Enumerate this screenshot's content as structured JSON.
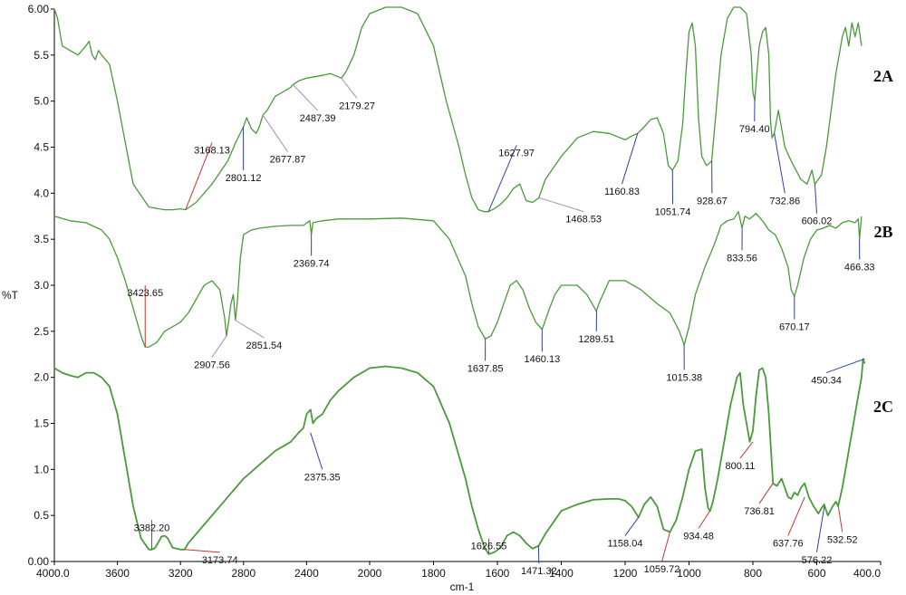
{
  "chart_data": {
    "type": "line",
    "xlabel": "cm-1",
    "ylabel": "%T",
    "xlim": [
      4000.0,
      400.0
    ],
    "ylim": [
      0.0,
      6.0
    ],
    "grid": false,
    "x_ticks": [
      "4000.0",
      "3600",
      "3200",
      "2800",
      "2400",
      "2000",
      "1800",
      "1600",
      "1400",
      "1200",
      "1000",
      "800",
      "600",
      "400.0"
    ],
    "y_ticks": [
      "0.00",
      "0.5",
      "1.0",
      "1.5",
      "2.0",
      "2.5",
      "3.0",
      "3.5",
      "4.0",
      "4.5",
      "5.0",
      "5.5",
      "6.00"
    ],
    "colors": {
      "spectrum": "#4a9a3c",
      "axis": "#000000",
      "label_blue": "#2f3fa8",
      "label_red": "#c0392b",
      "label_purple": "#9b8ec4"
    },
    "series": [
      {
        "name": "2A",
        "x": [
          4000,
          3980,
          3950,
          3900,
          3850,
          3800,
          3780,
          3760,
          3740,
          3720,
          3700,
          3650,
          3600,
          3500,
          3400,
          3300,
          3250,
          3200,
          3168,
          3100,
          3000,
          2900,
          2850,
          2801,
          2780,
          2750,
          2720,
          2700,
          2677,
          2650,
          2600,
          2550,
          2500,
          2487,
          2450,
          2400,
          2300,
          2250,
          2179,
          2150,
          2100,
          2050,
          2000,
          1950,
          1900,
          1850,
          1800,
          1760,
          1720,
          1700,
          1680,
          1660,
          1640,
          1628,
          1610,
          1590,
          1570,
          1550,
          1530,
          1510,
          1490,
          1470,
          1450,
          1400,
          1350,
          1300,
          1250,
          1200,
          1180,
          1161,
          1140,
          1120,
          1100,
          1080,
          1065,
          1052,
          1035,
          1020,
          1010,
          1000,
          990,
          980,
          970,
          960,
          945,
          929,
          915,
          900,
          880,
          860,
          840,
          820,
          805,
          800,
          794,
          790,
          780,
          770,
          760,
          750,
          745,
          740,
          733,
          720,
          700,
          680,
          650,
          630,
          615,
          606,
          595,
          585,
          570,
          555,
          540,
          520,
          510,
          500,
          490,
          480,
          470,
          460
        ],
        "y": [
          6.0,
          5.9,
          5.6,
          5.55,
          5.5,
          5.6,
          5.65,
          5.5,
          5.45,
          5.55,
          5.5,
          5.4,
          5.0,
          4.1,
          3.85,
          3.82,
          3.82,
          3.83,
          3.82,
          3.9,
          4.1,
          4.35,
          4.55,
          4.72,
          4.82,
          4.7,
          4.65,
          4.72,
          4.85,
          4.9,
          5.05,
          5.1,
          5.15,
          5.18,
          5.22,
          5.25,
          5.28,
          5.3,
          5.25,
          5.32,
          5.5,
          5.8,
          5.95,
          6.02,
          6.02,
          5.95,
          5.6,
          5.0,
          4.5,
          4.2,
          3.95,
          3.82,
          3.8,
          3.8,
          3.83,
          3.88,
          3.95,
          4.05,
          4.1,
          3.92,
          3.9,
          3.95,
          4.15,
          4.4,
          4.6,
          4.67,
          4.65,
          4.58,
          4.62,
          4.65,
          4.72,
          4.8,
          4.82,
          4.65,
          4.3,
          4.25,
          4.35,
          4.75,
          5.3,
          5.75,
          5.85,
          5.6,
          4.8,
          4.4,
          4.3,
          4.35,
          4.9,
          5.5,
          5.9,
          6.02,
          6.02,
          5.95,
          5.5,
          5.1,
          5.0,
          5.2,
          5.6,
          5.75,
          5.8,
          5.5,
          4.8,
          4.6,
          4.65,
          4.9,
          4.5,
          4.35,
          4.15,
          4.1,
          4.25,
          4.1,
          4.15,
          4.2,
          4.5,
          4.9,
          5.3,
          5.7,
          5.8,
          5.6,
          5.85,
          5.7,
          5.85,
          5.6
        ],
        "peaks": [
          {
            "label": "3168.13",
            "x": 3168.13,
            "y": 3.82,
            "color": "label_red",
            "lx": 3000,
            "ly": 4.55
          },
          {
            "label": "2801.12",
            "x": 2801.12,
            "y": 4.72,
            "color": "label_blue",
            "lx": 2801,
            "ly": 4.25
          },
          {
            "label": "2677.87",
            "x": 2677.87,
            "y": 4.85,
            "color": "label_purple",
            "lx": 2520,
            "ly": 4.45
          },
          {
            "label": "2487.39",
            "x": 2487.39,
            "y": 5.18,
            "color": "label_purple",
            "lx": 2330,
            "ly": 4.9
          },
          {
            "label": "2179.27",
            "x": 2179.27,
            "y": 5.25,
            "color": "label_purple",
            "lx": 2080,
            "ly": 5.03
          },
          {
            "label": "1627.97",
            "x": 1627.97,
            "y": 3.8,
            "color": "label_blue",
            "lx": 1540,
            "ly": 4.52
          },
          {
            "label": "1468.53",
            "x": 1468.53,
            "y": 3.95,
            "color": "label_purple",
            "lx": 1330,
            "ly": 3.8
          },
          {
            "label": "1160.83",
            "x": 1160.83,
            "y": 4.65,
            "color": "label_blue",
            "lx": 1210,
            "ly": 4.1
          },
          {
            "label": "1051.74",
            "x": 1051.74,
            "y": 4.25,
            "color": "label_blue",
            "lx": 1051,
            "ly": 3.88
          },
          {
            "label": "928.67",
            "x": 928.67,
            "y": 4.35,
            "color": "label_blue",
            "lx": 928,
            "ly": 4.0
          },
          {
            "label": "794.40",
            "x": 794.4,
            "y": 5.0,
            "color": "label_blue",
            "lx": 795,
            "ly": 4.78
          },
          {
            "label": "732.86",
            "x": 732.86,
            "y": 4.65,
            "color": "label_blue",
            "lx": 700,
            "ly": 4.0
          },
          {
            "label": "606.02",
            "x": 606.02,
            "y": 4.1,
            "color": "label_blue",
            "lx": 600,
            "ly": 3.78
          }
        ]
      },
      {
        "name": "2B",
        "x": [
          4000,
          3900,
          3800,
          3700,
          3650,
          3600,
          3550,
          3500,
          3450,
          3424,
          3400,
          3350,
          3300,
          3250,
          3200,
          3150,
          3100,
          3050,
          3000,
          2950,
          2920,
          2908,
          2895,
          2880,
          2865,
          2852,
          2840,
          2820,
          2800,
          2750,
          2700,
          2600,
          2500,
          2420,
          2380,
          2370,
          2360,
          2300,
          2200,
          2100,
          2000,
          1900,
          1800,
          1750,
          1700,
          1680,
          1660,
          1638,
          1620,
          1600,
          1580,
          1560,
          1540,
          1520,
          1500,
          1480,
          1460,
          1440,
          1420,
          1400,
          1350,
          1320,
          1300,
          1290,
          1280,
          1250,
          1200,
          1150,
          1100,
          1060,
          1030,
          1015,
          1000,
          980,
          950,
          920,
          900,
          880,
          860,
          845,
          834,
          825,
          810,
          790,
          770,
          750,
          730,
          710,
          690,
          680,
          670,
          660,
          640,
          620,
          600,
          580,
          560,
          540,
          520,
          500,
          480,
          470,
          466,
          460
        ],
        "y": [
          3.75,
          3.7,
          3.68,
          3.6,
          3.5,
          3.3,
          3.05,
          2.75,
          2.45,
          2.33,
          2.33,
          2.38,
          2.5,
          2.55,
          2.6,
          2.7,
          2.85,
          3.0,
          3.05,
          2.95,
          2.65,
          2.45,
          2.6,
          2.8,
          2.9,
          2.62,
          2.8,
          3.3,
          3.55,
          3.6,
          3.62,
          3.64,
          3.65,
          3.65,
          3.7,
          3.55,
          3.68,
          3.7,
          3.72,
          3.72,
          3.72,
          3.73,
          3.7,
          3.5,
          3.1,
          2.8,
          2.55,
          2.42,
          2.45,
          2.6,
          2.8,
          3.0,
          3.05,
          2.95,
          2.75,
          2.6,
          2.52,
          2.72,
          2.9,
          3.0,
          3.0,
          2.9,
          2.78,
          2.72,
          2.82,
          3.05,
          3.05,
          2.95,
          2.8,
          2.7,
          2.5,
          2.35,
          2.55,
          2.9,
          3.2,
          3.45,
          3.65,
          3.7,
          3.72,
          3.8,
          3.62,
          3.75,
          3.72,
          3.78,
          3.7,
          3.6,
          3.55,
          3.4,
          3.2,
          2.95,
          2.88,
          3.0,
          3.3,
          3.5,
          3.6,
          3.62,
          3.65,
          3.62,
          3.68,
          3.7,
          3.68,
          3.72,
          3.5,
          3.75
        ],
        "peaks": [
          {
            "label": "3423.65",
            "x": 3423.65,
            "y": 2.33,
            "color": "label_red",
            "lx": 3424,
            "ly": 3.0
          },
          {
            "label": "2907.56",
            "x": 2907.56,
            "y": 2.45,
            "color": "label_purple",
            "lx": 3000,
            "ly": 2.22
          },
          {
            "label": "2851.54",
            "x": 2851.54,
            "y": 2.62,
            "color": "label_purple",
            "lx": 2670,
            "ly": 2.43
          },
          {
            "label": "2369.74",
            "x": 2369.74,
            "y": 3.55,
            "color": "label_blue",
            "lx": 2370,
            "ly": 3.32
          },
          {
            "label": "1637.85",
            "x": 1637.85,
            "y": 2.42,
            "color": "label_blue",
            "lx": 1638,
            "ly": 2.18
          },
          {
            "label": "1460.13",
            "x": 1460.13,
            "y": 2.52,
            "color": "label_blue",
            "lx": 1460,
            "ly": 2.28
          },
          {
            "label": "1289.51",
            "x": 1289.51,
            "y": 2.72,
            "color": "label_blue",
            "lx": 1290,
            "ly": 2.5
          },
          {
            "label": "1015.38",
            "x": 1015.38,
            "y": 2.35,
            "color": "label_blue",
            "lx": 1015,
            "ly": 2.08
          },
          {
            "label": "833.56",
            "x": 833.56,
            "y": 3.62,
            "color": "label_blue",
            "lx": 834,
            "ly": 3.38
          },
          {
            "label": "670.17",
            "x": 670.17,
            "y": 2.88,
            "color": "label_blue",
            "lx": 670,
            "ly": 2.63
          },
          {
            "label": "466.33",
            "x": 466.33,
            "y": 3.5,
            "color": "label_blue",
            "lx": 466,
            "ly": 3.28
          }
        ]
      },
      {
        "name": "2C",
        "x": [
          4000,
          3950,
          3900,
          3850,
          3800,
          3750,
          3700,
          3650,
          3600,
          3550,
          3500,
          3450,
          3400,
          3382,
          3360,
          3320,
          3300,
          3280,
          3250,
          3200,
          3174,
          3150,
          3100,
          3000,
          2900,
          2800,
          2700,
          2600,
          2500,
          2450,
          2420,
          2400,
          2390,
          2375,
          2360,
          2340,
          2300,
          2250,
          2200,
          2100,
          2000,
          1950,
          1900,
          1850,
          1800,
          1750,
          1700,
          1680,
          1660,
          1640,
          1627,
          1610,
          1590,
          1570,
          1550,
          1530,
          1510,
          1490,
          1471,
          1450,
          1420,
          1400,
          1350,
          1300,
          1250,
          1220,
          1200,
          1180,
          1158,
          1140,
          1120,
          1100,
          1080,
          1060,
          1040,
          1020,
          1000,
          980,
          960,
          950,
          940,
          934,
          925,
          910,
          890,
          870,
          850,
          840,
          830,
          820,
          810,
          800,
          790,
          780,
          770,
          760,
          750,
          737,
          725,
          710,
          700,
          690,
          680,
          670,
          660,
          650,
          638,
          625,
          610,
          595,
          585,
          577,
          565,
          550,
          540,
          533,
          520,
          505,
          490,
          480,
          470,
          460,
          455,
          450
        ],
        "y": [
          2.1,
          2.05,
          2.02,
          2.0,
          2.05,
          2.05,
          2.0,
          1.9,
          1.6,
          1.1,
          0.6,
          0.25,
          0.13,
          0.13,
          0.15,
          0.27,
          0.28,
          0.25,
          0.15,
          0.13,
          0.13,
          0.2,
          0.3,
          0.5,
          0.7,
          0.9,
          1.05,
          1.2,
          1.3,
          1.4,
          1.45,
          1.6,
          1.62,
          1.65,
          1.5,
          1.55,
          1.6,
          1.75,
          1.85,
          2.0,
          2.1,
          2.12,
          2.1,
          2.05,
          1.9,
          1.5,
          0.9,
          0.6,
          0.35,
          0.15,
          0.08,
          0.1,
          0.15,
          0.28,
          0.32,
          0.28,
          0.2,
          0.14,
          0.17,
          0.3,
          0.45,
          0.55,
          0.62,
          0.67,
          0.68,
          0.68,
          0.66,
          0.6,
          0.48,
          0.62,
          0.7,
          0.6,
          0.35,
          0.32,
          0.45,
          0.7,
          1.0,
          1.2,
          1.22,
          0.8,
          0.58,
          0.55,
          0.65,
          0.9,
          1.3,
          1.7,
          2.0,
          2.05,
          1.7,
          1.5,
          1.3,
          1.42,
          1.8,
          2.08,
          2.1,
          2.0,
          1.6,
          0.85,
          0.82,
          0.9,
          0.8,
          0.7,
          0.68,
          0.75,
          0.72,
          0.8,
          0.85,
          0.7,
          0.6,
          0.52,
          0.58,
          0.62,
          0.5,
          0.6,
          0.65,
          0.6,
          0.8,
          1.1,
          1.4,
          1.6,
          1.8,
          2.0,
          2.2,
          2.15
        ],
        "peaks": [
          {
            "label": "3382.20",
            "x": 3382.2,
            "y": 0.13,
            "color": "label_red",
            "lx": 3382,
            "ly": 0.45
          },
          {
            "label": "3173.74",
            "x": 3173.74,
            "y": 0.13,
            "color": "label_red",
            "lx": 2950,
            "ly": 0.1
          },
          {
            "label": "2375.35",
            "x": 2375.35,
            "y": 1.4,
            "color": "label_blue",
            "lx": 2300,
            "ly": 1.0
          },
          {
            "label": "1626.55",
            "x": 1626.55,
            "y": 0.08,
            "color": "label_red",
            "lx": 1627,
            "ly": 0.25
          },
          {
            "label": "1471.32",
            "x": 1471.32,
            "y": 0.17,
            "color": "label_blue",
            "lx": 1470,
            "ly": -0.02
          },
          {
            "label": "1158.04",
            "x": 1158.04,
            "y": 0.48,
            "color": "label_blue",
            "lx": 1200,
            "ly": 0.28
          },
          {
            "label": "1059.72",
            "x": 1059.72,
            "y": 0.32,
            "color": "label_red",
            "lx": 1085,
            "ly": 0.0
          },
          {
            "label": "934.48",
            "x": 934.48,
            "y": 0.55,
            "color": "label_red",
            "lx": 970,
            "ly": 0.36
          },
          {
            "label": "800.11",
            "x": 800.11,
            "y": 1.3,
            "color": "label_red",
            "lx": 840,
            "ly": 1.12
          },
          {
            "label": "736.81",
            "x": 736.81,
            "y": 0.85,
            "color": "label_red",
            "lx": 780,
            "ly": 0.63
          },
          {
            "label": "637.76",
            "x": 637.76,
            "y": 0.7,
            "color": "label_red",
            "lx": 690,
            "ly": 0.28
          },
          {
            "label": "576.22",
            "x": 576.22,
            "y": 0.6,
            "color": "label_blue",
            "lx": 600,
            "ly": 0.1
          },
          {
            "label": "532.52",
            "x": 532.52,
            "y": 0.6,
            "color": "label_red",
            "lx": 520,
            "ly": 0.32
          },
          {
            "label": "450.34",
            "x": 450.34,
            "y": 2.2,
            "color": "label_blue",
            "lx": 570,
            "ly": 2.05
          }
        ]
      }
    ]
  }
}
